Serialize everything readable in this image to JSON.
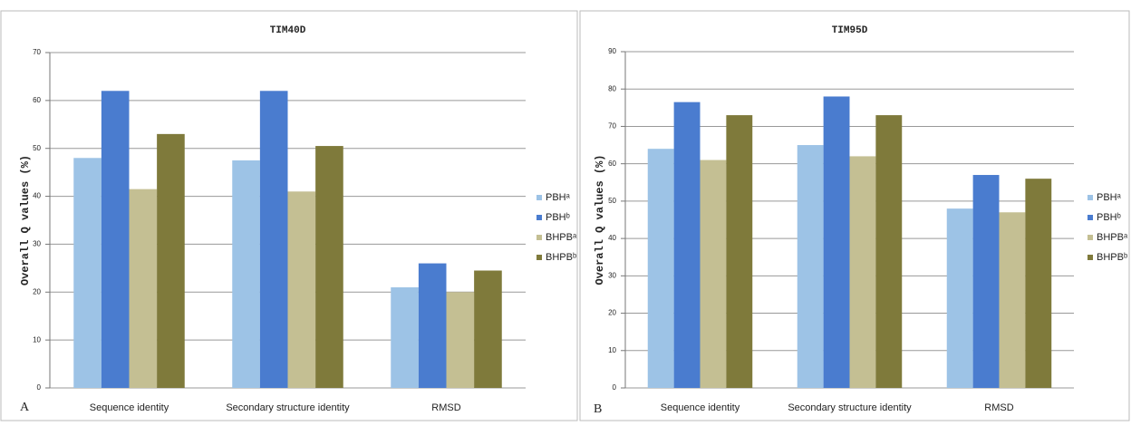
{
  "chart_data": [
    {
      "type": "bar",
      "panel": "A",
      "title": "TIM40D",
      "y_label": "Overall Q values (%)",
      "categories": [
        "Sequence identity",
        "Secondary structure identity",
        "RMSD"
      ],
      "series": [
        {
          "name": "PBHᵃ",
          "color": "#9dc3e6",
          "values": [
            48,
            47.5,
            21
          ]
        },
        {
          "name": "PBHᵇ",
          "color": "#4a7ccf",
          "values": [
            62,
            62,
            26
          ]
        },
        {
          "name": "BHPBᵃ",
          "color": "#c4bf93",
          "values": [
            41.5,
            41,
            20
          ]
        },
        {
          "name": "BHPBᵇ",
          "color": "#7f7a3b",
          "values": [
            53,
            50.5,
            24.5
          ]
        }
      ],
      "ylim": [
        0,
        70
      ],
      "yticks": [
        0,
        10,
        20,
        30,
        40,
        50,
        60,
        70
      ],
      "grid": true,
      "legend": "right"
    },
    {
      "type": "bar",
      "panel": "B",
      "title": "TIM95D",
      "y_label": "Overall Q values (%)",
      "categories": [
        "Sequence identity",
        "Secondary structure identity",
        "RMSD"
      ],
      "series": [
        {
          "name": "PBHᵃ",
          "color": "#9dc3e6",
          "values": [
            64,
            65,
            48
          ]
        },
        {
          "name": "PBHᵇ",
          "color": "#4a7ccf",
          "values": [
            76.5,
            78,
            57
          ]
        },
        {
          "name": "BHPBᵃ",
          "color": "#c4bf93",
          "values": [
            61,
            62,
            47
          ]
        },
        {
          "name": "BHPBᵇ",
          "color": "#7f7a3b",
          "values": [
            73,
            73,
            56
          ]
        }
      ],
      "ylim": [
        0,
        90
      ],
      "yticks": [
        0,
        10,
        20,
        30,
        40,
        50,
        60,
        70,
        80,
        90
      ],
      "grid": true,
      "legend": "right"
    }
  ]
}
